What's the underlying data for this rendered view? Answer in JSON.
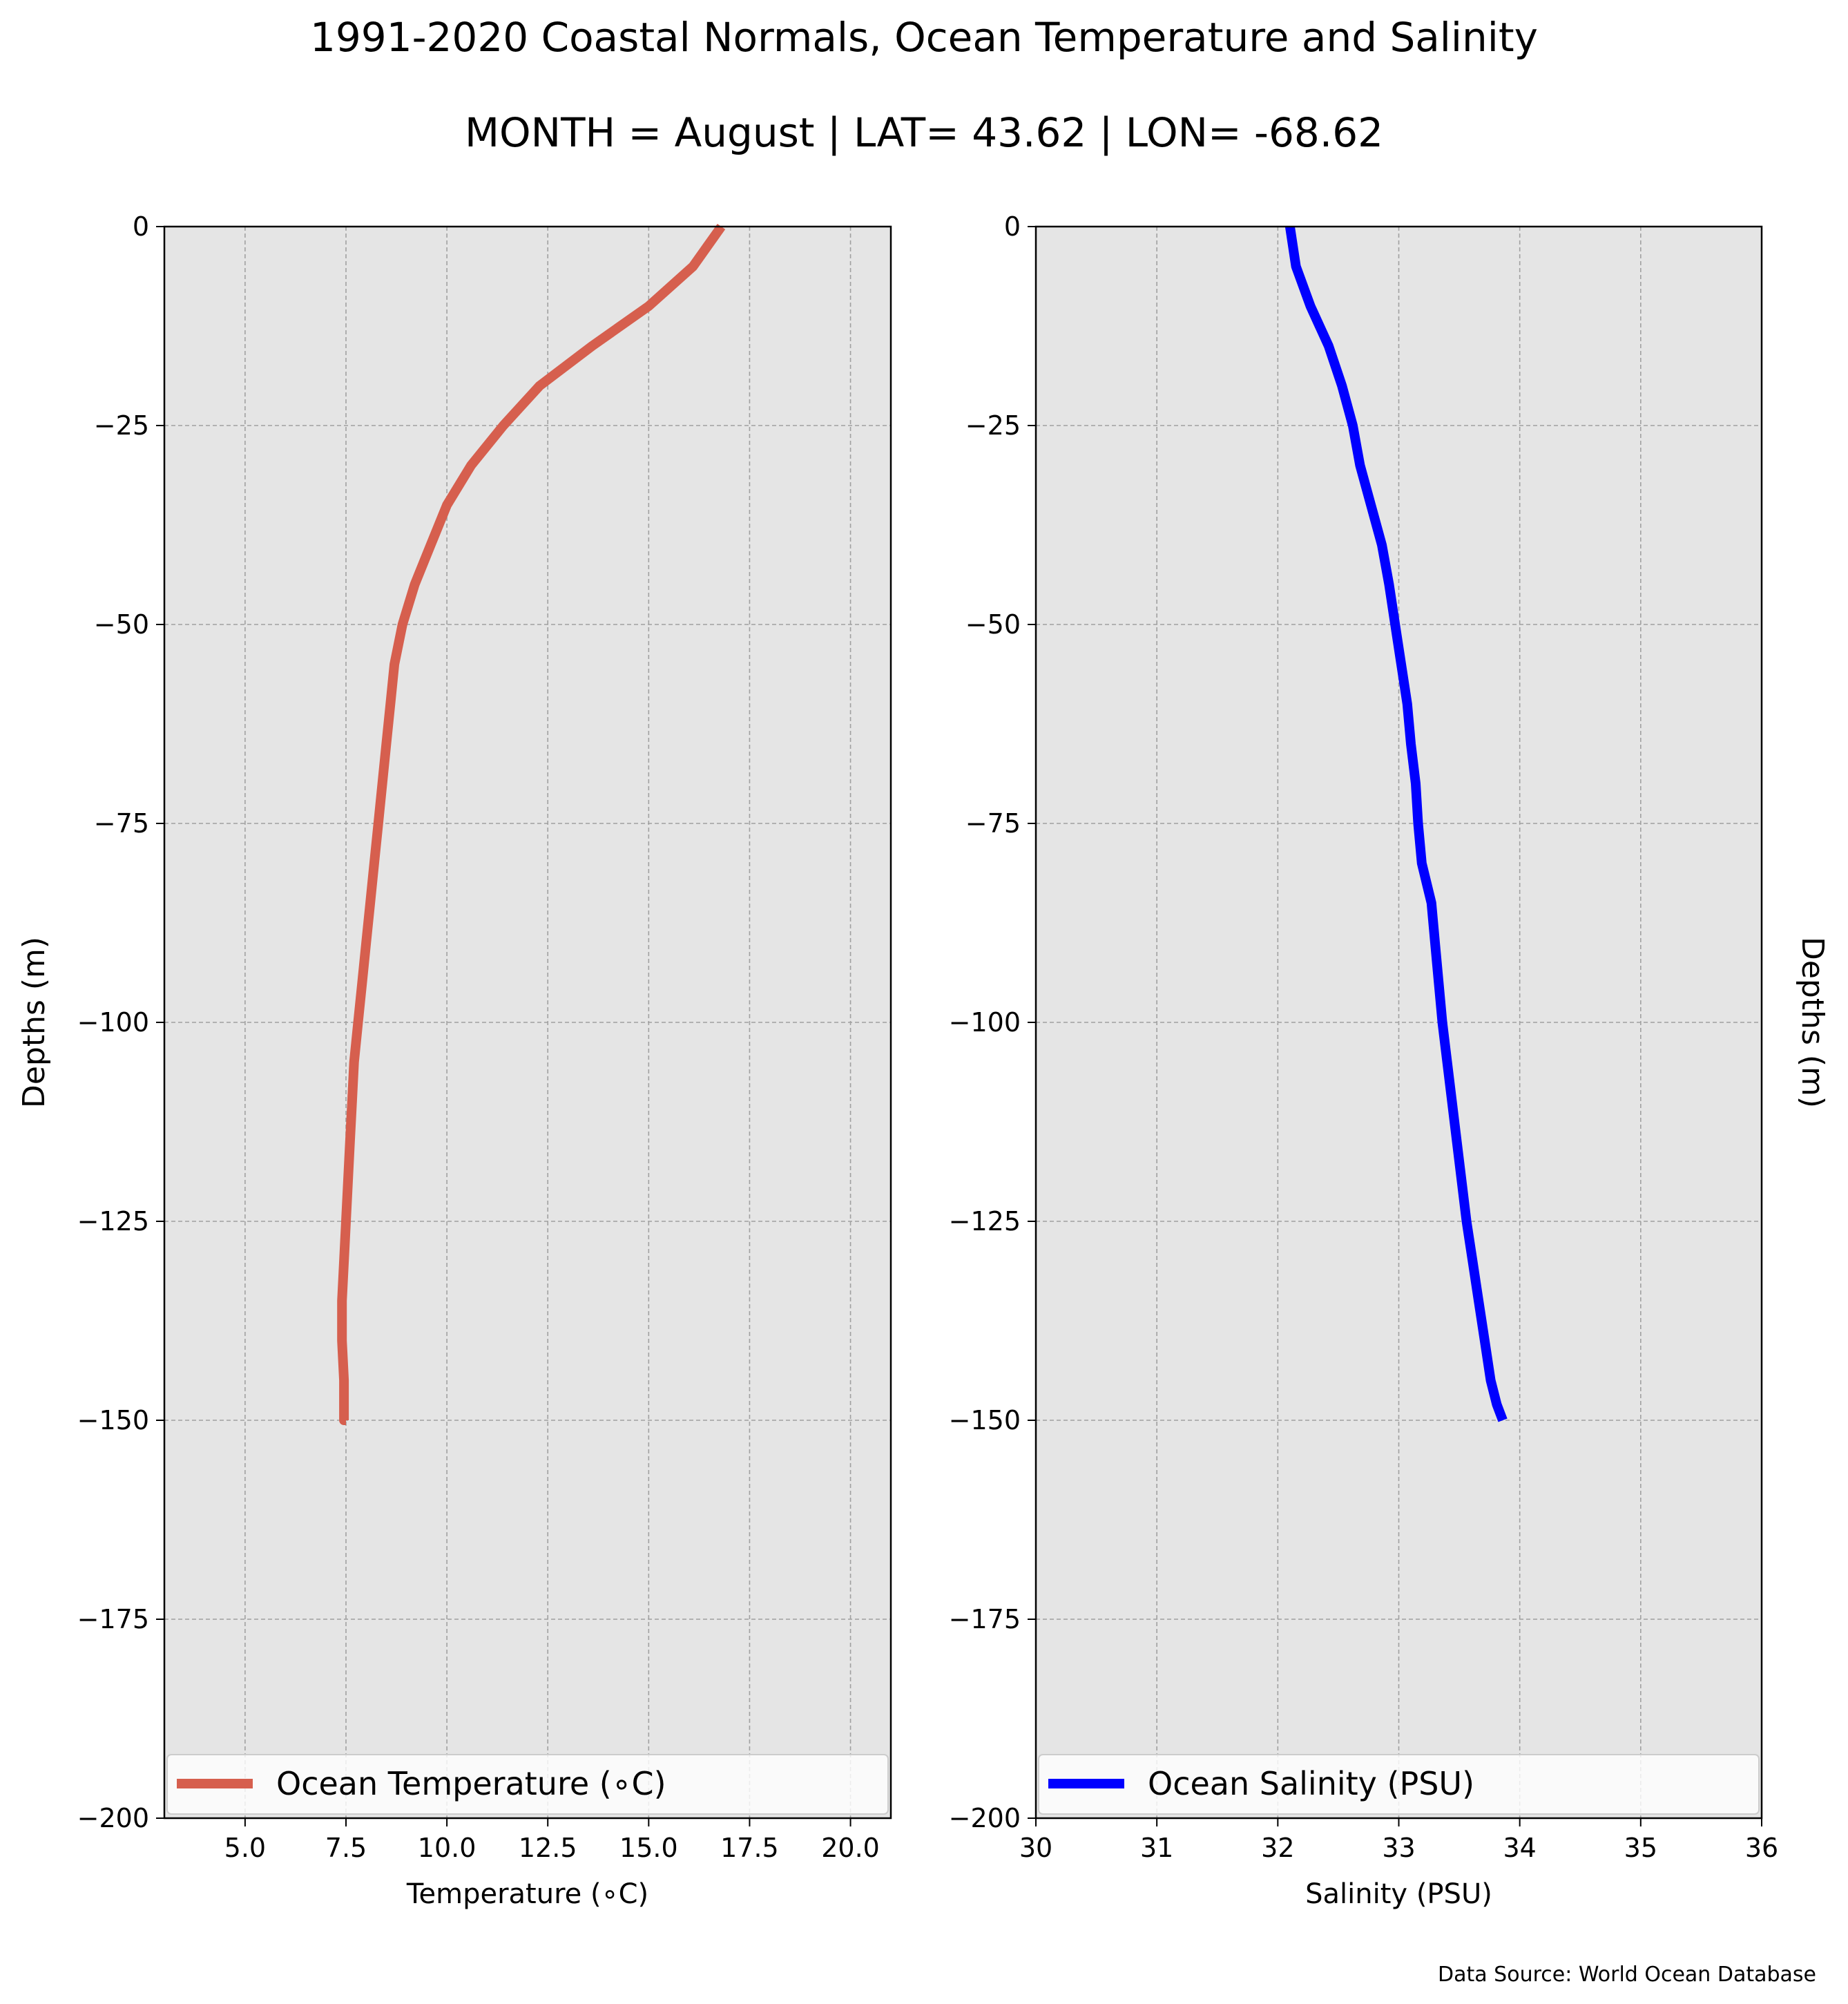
{
  "header": {
    "title": "1991-2020 Coastal Normals, Ocean Temperature and Salinity",
    "subtitle": "MONTH = August | LAT= 43.62 | LON= -68.62"
  },
  "footer": {
    "source": "Data Source: World Ocean Database"
  },
  "colors": {
    "temperature": "#d65f4e",
    "salinity": "#0000ff",
    "plot_bg": "#e5e5e5",
    "grid": "#a0a0a0"
  },
  "chart_data": [
    {
      "type": "line",
      "xlabel": "Temperature ($^\\circ$C)",
      "ylabel": "Depths (m)",
      "xlabel_display": "Temperature (∘C)",
      "xlim": [
        3.0,
        21.0
      ],
      "ylim": [
        -200,
        0
      ],
      "x_ticks": [
        5.0,
        7.5,
        10.0,
        12.5,
        15.0,
        17.5,
        20.0
      ],
      "x_tick_labels": [
        "5.0",
        "7.5",
        "10.0",
        "12.5",
        "15.0",
        "17.5",
        "20.0"
      ],
      "y_ticks": [
        0,
        -25,
        -50,
        -75,
        -100,
        -125,
        -150,
        -175,
        -200
      ],
      "y_tick_labels": [
        "0",
        "−25",
        "−50",
        "−75",
        "−100",
        "−125",
        "−150",
        "−175",
        "−200"
      ],
      "grid": true,
      "legend": "bottom",
      "series": [
        {
          "name": "Ocean Temperature (∘C)",
          "color": "#d65f4e",
          "x": [
            16.8,
            16.1,
            15.0,
            13.6,
            12.3,
            11.4,
            10.6,
            10.0,
            9.6,
            9.2,
            8.9,
            8.7,
            8.6,
            8.5,
            8.4,
            8.3,
            8.2,
            8.1,
            8.0,
            7.9,
            7.8,
            7.7,
            7.65,
            7.6,
            7.55,
            7.5,
            7.45,
            7.4,
            7.4,
            7.45,
            7.45,
            7.5
          ],
          "depth": [
            0,
            -5,
            -10,
            -15,
            -20,
            -25,
            -30,
            -35,
            -40,
            -45,
            -50,
            -55,
            -60,
            -65,
            -70,
            -75,
            -80,
            -85,
            -90,
            -95,
            -100,
            -105,
            -110,
            -115,
            -120,
            -125,
            -130,
            -135,
            -140,
            -145,
            -150,
            -150
          ]
        }
      ]
    },
    {
      "type": "line",
      "xlabel": "Salinity (PSU)",
      "ylabel": "Depths (m)",
      "xlim": [
        30,
        36
      ],
      "ylim": [
        -200,
        0
      ],
      "x_ticks": [
        30,
        31,
        32,
        33,
        34,
        35,
        36
      ],
      "x_tick_labels": [
        "30",
        "31",
        "32",
        "33",
        "34",
        "35",
        "36"
      ],
      "y_ticks": [
        0,
        -25,
        -50,
        -75,
        -100,
        -125,
        -150,
        -175,
        -200
      ],
      "y_tick_labels": [
        "0",
        "−25",
        "−50",
        "−75",
        "−100",
        "−125",
        "−150",
        "−175",
        "−200"
      ],
      "grid": true,
      "legend": "bottom",
      "series": [
        {
          "name": "Ocean Salinity (PSU)",
          "color": "#0000ff",
          "x": [
            32.1,
            32.15,
            32.27,
            32.42,
            32.53,
            32.62,
            32.68,
            32.77,
            32.86,
            32.92,
            32.97,
            33.02,
            33.07,
            33.1,
            33.14,
            33.16,
            33.19,
            33.27,
            33.3,
            33.33,
            33.36,
            33.4,
            33.44,
            33.48,
            33.52,
            33.56,
            33.61,
            33.66,
            33.71,
            33.76,
            33.81,
            33.86
          ],
          "depth": [
            0,
            -5,
            -10,
            -15,
            -20,
            -25,
            -30,
            -35,
            -40,
            -45,
            -50,
            -55,
            -60,
            -65,
            -70,
            -75,
            -80,
            -85,
            -90,
            -95,
            -100,
            -105,
            -110,
            -115,
            -120,
            -125,
            -130,
            -135,
            -140,
            -145,
            -148,
            -150
          ]
        }
      ]
    }
  ]
}
